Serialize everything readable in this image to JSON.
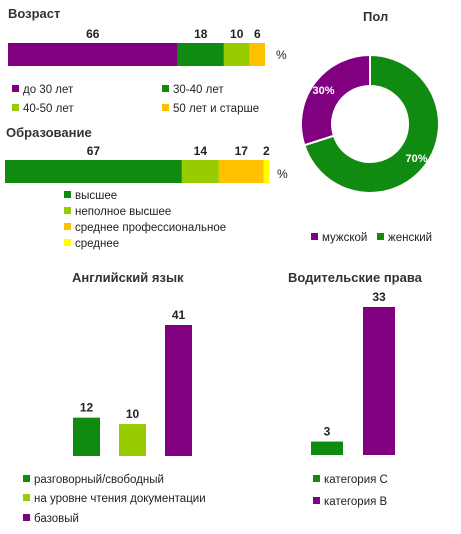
{
  "colors": {
    "purple": "#800080",
    "green": "#118a11",
    "lightgreen": "#99cc00",
    "orange": "#ffc000",
    "yellow": "#ffff00"
  },
  "chart_data": [
    {
      "id": "age",
      "type": "bar",
      "orientation": "horizontal-stacked",
      "title": "Возраст",
      "unit": "%",
      "categories": [
        "до 30 лет",
        "30-40  лет",
        "40-50  лет",
        "50 лет и старше"
      ],
      "values": [
        66,
        18,
        10,
        6
      ],
      "colors": [
        "#800080",
        "#118a11",
        "#99cc00",
        "#ffc000"
      ]
    },
    {
      "id": "education",
      "type": "bar",
      "orientation": "horizontal-stacked",
      "title": "Образование",
      "unit": "%",
      "categories": [
        "высшее",
        "неполное высшее",
        "среднее профессиональное",
        "среднее"
      ],
      "values": [
        67,
        14,
        17,
        2
      ],
      "colors": [
        "#118a11",
        "#99cc00",
        "#ffc000",
        "#ffff00"
      ]
    },
    {
      "id": "gender",
      "type": "pie",
      "style": "donut",
      "title": "Пол",
      "categories": [
        "мужской",
        "женский"
      ],
      "values": [
        30,
        70
      ],
      "labels": [
        "30%",
        "70%"
      ],
      "colors": [
        "#800080",
        "#118a11"
      ]
    },
    {
      "id": "english",
      "type": "bar",
      "title": "Английский язык",
      "categories": [
        "разговорный/свободный",
        "на уровне чтения документации",
        "базовый"
      ],
      "values": [
        12,
        10,
        41
      ],
      "colors": [
        "#118a11",
        "#99cc00",
        "#800080"
      ]
    },
    {
      "id": "license",
      "type": "bar",
      "title": "Водительские права",
      "categories": [
        "категория  С",
        "категория  В"
      ],
      "values": [
        3,
        33
      ],
      "colors": [
        "#118a11",
        "#800080"
      ]
    }
  ]
}
